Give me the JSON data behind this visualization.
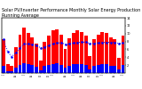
{
  "title": "Solar PV/Inverter Performance Monthly Solar Energy Production Running Average",
  "title_fontsize": 3.5,
  "bar_values": [
    8.5,
    2.2,
    1.8,
    6.5,
    9.8,
    11.5,
    10.2,
    9.0,
    7.5,
    3.2,
    7.8,
    9.5,
    10.8,
    11.0,
    9.8,
    6.2,
    8.8,
    10.2,
    10.8,
    10.5,
    9.5,
    4.2,
    8.5,
    9.8,
    10.5,
    10.2,
    9.0,
    8.5,
    3.8,
    9.5
  ],
  "running_avg": [
    8.5,
    5.35,
    4.17,
    5.13,
    6.36,
    7.37,
    7.34,
    7.24,
    7.09,
    6.37,
    6.59,
    7.0,
    7.38,
    7.6,
    7.67,
    7.33,
    7.41,
    7.6,
    7.74,
    7.82,
    7.84,
    7.48,
    7.53,
    7.64,
    7.73,
    7.78,
    7.76,
    7.77,
    7.49,
    7.59
  ],
  "bar_color": "#FF0000",
  "avg_color": "#0000FF",
  "background_color": "#FFFFFF",
  "plot_bg_color": "#FFFFFF",
  "grid_color": "#AAAAAA",
  "grid_style": "dotted",
  "ylim": [
    0,
    14
  ],
  "ytick_right": [
    2,
    4,
    6,
    8,
    10,
    12,
    14
  ],
  "small_bar_values": [
    1.8,
    0.5,
    0.4,
    1.4,
    2.1,
    2.5,
    2.2,
    2.0,
    1.6,
    0.7,
    1.7,
    2.0,
    2.3,
    2.4,
    2.1,
    1.3,
    1.9,
    2.2,
    2.3,
    2.3,
    2.0,
    0.9,
    1.8,
    2.1,
    2.3,
    2.2,
    1.9,
    1.8,
    0.8,
    2.0
  ],
  "small_bar_color": "#0000FF",
  "n_bars": 30,
  "tick_fontsize": 2.5,
  "ylabel_right_fontsize": 3.5
}
